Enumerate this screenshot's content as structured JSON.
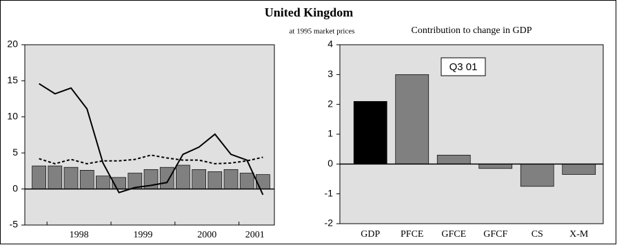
{
  "title": "United Kingdom",
  "subtitle": "at 1995 market prices",
  "chart_data": [
    {
      "type": "bar_line",
      "categories": [
        null,
        "1998",
        null,
        null,
        null,
        "1999",
        null,
        null,
        null,
        "2000",
        null,
        null,
        null,
        "2001",
        null
      ],
      "ylim": [
        -5,
        20
      ],
      "yticks": [
        -5,
        0,
        5,
        10,
        15,
        20
      ],
      "bars": {
        "color": "#808080",
        "values": [
          3.2,
          3.2,
          3.0,
          2.6,
          1.8,
          1.6,
          2.2,
          2.7,
          3.0,
          3.3,
          2.7,
          2.4,
          2.7,
          2.2,
          2.0
        ]
      },
      "series": [
        {
          "color": "#000000",
          "line_style": "solid",
          "values": [
            14.6,
            13.2,
            14.0,
            11.1,
            3.6,
            -0.5,
            0.2,
            0.5,
            0.9,
            4.8,
            5.8,
            7.6,
            4.8,
            4.0,
            -0.8
          ]
        },
        {
          "color": "#000000",
          "line_style": "dashed",
          "values": [
            4.2,
            3.5,
            4.1,
            3.5,
            3.9,
            3.9,
            4.1,
            4.7,
            4.3,
            4.0,
            4.0,
            3.5,
            3.6,
            3.9,
            4.4
          ]
        }
      ]
    },
    {
      "type": "bar",
      "title": "Contribution to change in GDP",
      "annotation": "Q3 01",
      "categories": [
        "GDP",
        "PFCE",
        "GFCE",
        "GFCF",
        "CS",
        "X-M"
      ],
      "values": [
        2.1,
        3.0,
        0.3,
        -0.15,
        -0.75,
        -0.35
      ],
      "colors": [
        "#000000",
        "#808080",
        "#808080",
        "#808080",
        "#808080",
        "#808080"
      ],
      "ylim": [
        -2,
        4
      ],
      "yticks": [
        -2,
        -1,
        0,
        1,
        2,
        3,
        4
      ]
    }
  ]
}
